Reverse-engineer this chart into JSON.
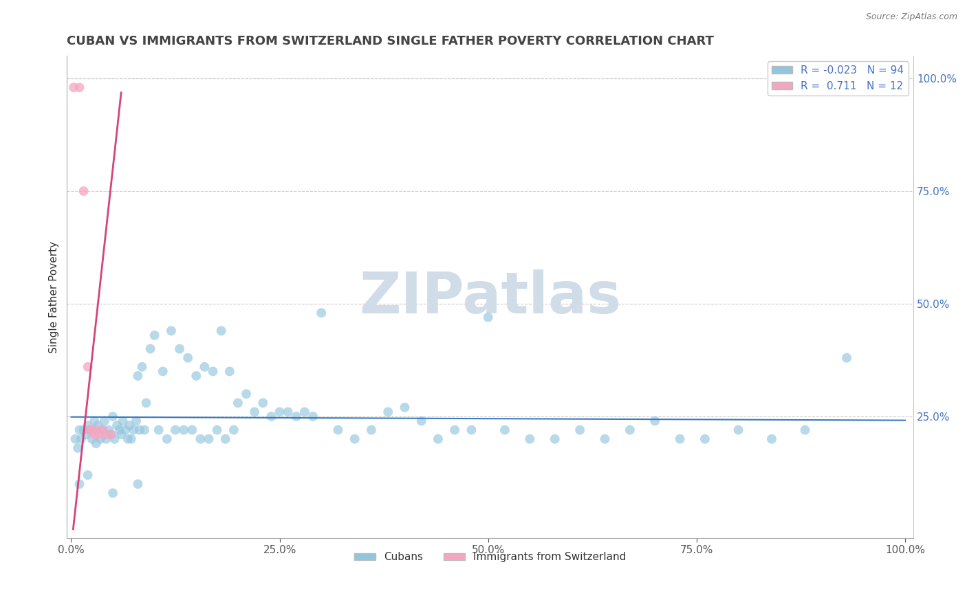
{
  "title": "CUBAN VS IMMIGRANTS FROM SWITZERLAND SINGLE FATHER POVERTY CORRELATION CHART",
  "source": "Source: ZipAtlas.com",
  "ylabel": "Single Father Poverty",
  "xlim": [
    0.0,
    1.0
  ],
  "ylim": [
    -0.02,
    1.05
  ],
  "xtick_positions": [
    0.0,
    0.25,
    0.5,
    0.75,
    1.0
  ],
  "xtick_labels": [
    "0.0%",
    "25.0%",
    "50.0%",
    "75.0%",
    "100.0%"
  ],
  "right_ytick_positions": [
    1.0,
    0.75,
    0.5,
    0.25
  ],
  "right_ytick_labels": [
    "100.0%",
    "75.0%",
    "50.0%",
    "25.0%"
  ],
  "cubans_R": -0.023,
  "cubans_N": 94,
  "swiss_R": 0.711,
  "swiss_N": 12,
  "blue_color": "#92c5de",
  "pink_color": "#f4a6c0",
  "blue_line_color": "#3a7abf",
  "pink_line_color": "#d6437a",
  "title_color": "#444444",
  "right_tick_color": "#4472c4",
  "watermark_color": "#d0dce8",
  "grid_color": "#cccccc",
  "cubans_x": [
    0.005,
    0.008,
    0.01,
    0.012,
    0.015,
    0.018,
    0.02,
    0.022,
    0.025,
    0.028,
    0.03,
    0.032,
    0.035,
    0.038,
    0.04,
    0.042,
    0.045,
    0.048,
    0.05,
    0.052,
    0.055,
    0.058,
    0.06,
    0.062,
    0.065,
    0.068,
    0.07,
    0.072,
    0.075,
    0.078,
    0.08,
    0.082,
    0.085,
    0.088,
    0.09,
    0.095,
    0.1,
    0.105,
    0.11,
    0.115,
    0.12,
    0.125,
    0.13,
    0.135,
    0.14,
    0.145,
    0.15,
    0.155,
    0.16,
    0.165,
    0.17,
    0.175,
    0.18,
    0.185,
    0.19,
    0.195,
    0.2,
    0.21,
    0.22,
    0.23,
    0.24,
    0.25,
    0.26,
    0.27,
    0.28,
    0.29,
    0.3,
    0.32,
    0.34,
    0.36,
    0.38,
    0.4,
    0.42,
    0.44,
    0.46,
    0.48,
    0.5,
    0.52,
    0.55,
    0.58,
    0.61,
    0.64,
    0.67,
    0.7,
    0.73,
    0.76,
    0.8,
    0.84,
    0.88,
    0.93,
    0.01,
    0.02,
    0.05,
    0.08
  ],
  "cubans_y": [
    0.2,
    0.18,
    0.22,
    0.2,
    0.22,
    0.21,
    0.23,
    0.22,
    0.2,
    0.24,
    0.19,
    0.23,
    0.2,
    0.22,
    0.24,
    0.2,
    0.22,
    0.21,
    0.25,
    0.2,
    0.23,
    0.22,
    0.21,
    0.24,
    0.22,
    0.2,
    0.23,
    0.2,
    0.22,
    0.24,
    0.34,
    0.22,
    0.36,
    0.22,
    0.28,
    0.4,
    0.43,
    0.22,
    0.35,
    0.2,
    0.44,
    0.22,
    0.4,
    0.22,
    0.38,
    0.22,
    0.34,
    0.2,
    0.36,
    0.2,
    0.35,
    0.22,
    0.44,
    0.2,
    0.35,
    0.22,
    0.28,
    0.3,
    0.26,
    0.28,
    0.25,
    0.26,
    0.26,
    0.25,
    0.26,
    0.25,
    0.48,
    0.22,
    0.2,
    0.22,
    0.26,
    0.27,
    0.24,
    0.2,
    0.22,
    0.22,
    0.47,
    0.22,
    0.2,
    0.2,
    0.22,
    0.2,
    0.22,
    0.24,
    0.2,
    0.2,
    0.22,
    0.2,
    0.22,
    0.38,
    0.1,
    0.12,
    0.08,
    0.1
  ],
  "swiss_x": [
    0.003,
    0.01,
    0.015,
    0.02,
    0.022,
    0.025,
    0.028,
    0.03,
    0.033,
    0.038,
    0.042,
    0.048
  ],
  "swiss_y": [
    0.98,
    0.98,
    0.75,
    0.36,
    0.22,
    0.22,
    0.21,
    0.22,
    0.21,
    0.22,
    0.21,
    0.21
  ]
}
